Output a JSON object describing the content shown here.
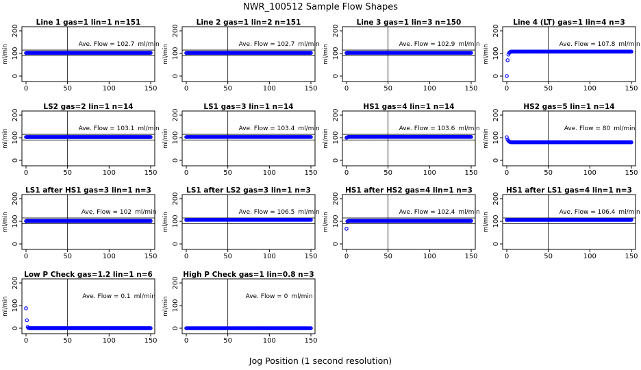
{
  "title": "NWR_100512  Sample Flow Shapes",
  "xlabel": "Jog Position (1 second resolution)",
  "annotation_prefix": "Ave. Flow = ",
  "annotation_unit": "ml/min",
  "colors": {
    "points": "#0000ff",
    "axes": "#000000"
  },
  "chart_data": [
    {
      "type": "scatter",
      "title": "Line 1 gas=1 lin=1 n=151",
      "ylabel": "ml/min",
      "xlim": [
        0,
        150
      ],
      "ylim": [
        0,
        200
      ],
      "xticks": [
        0,
        50,
        100,
        150
      ],
      "yticks": [
        0,
        100,
        200
      ],
      "ave_flow": "102.7",
      "vline_x": 50,
      "hlines": [
        90,
        115
      ],
      "shape": {
        "first": 102,
        "decay": [],
        "level": 102.7,
        "n": 151
      }
    },
    {
      "type": "scatter",
      "title": "Line 2 gas=1 lin=2 n=151",
      "ylabel": "ml/min",
      "xlim": [
        0,
        150
      ],
      "ylim": [
        0,
        200
      ],
      "xticks": [
        0,
        50,
        100,
        150
      ],
      "yticks": [
        0,
        100,
        200
      ],
      "ave_flow": "102.7",
      "vline_x": 50,
      "hlines": [
        90,
        115
      ],
      "shape": {
        "first": 102,
        "decay": [],
        "level": 102.7,
        "n": 151
      }
    },
    {
      "type": "scatter",
      "title": "Line 3 gas=1 lin=3 n=150",
      "ylabel": "ml/min",
      "xlim": [
        0,
        150
      ],
      "ylim": [
        0,
        200
      ],
      "xticks": [
        0,
        50,
        100,
        150
      ],
      "yticks": [
        0,
        100,
        200
      ],
      "ave_flow": "102.9",
      "vline_x": 50,
      "hlines": [
        90,
        115
      ],
      "shape": {
        "first": 102,
        "decay": [],
        "level": 102.9,
        "n": 150
      }
    },
    {
      "type": "scatter",
      "title": "Line 4 (LT) gas=1 lin=4 n=3",
      "ylabel": "ml/min",
      "xlim": [
        0,
        150
      ],
      "ylim": [
        0,
        200
      ],
      "xticks": [
        0,
        50,
        100,
        150
      ],
      "yticks": [
        0,
        100,
        200
      ],
      "ave_flow": "107.8",
      "vline_x": 50,
      "hlines": [],
      "shape": {
        "first": 0,
        "decay": [
          70,
          95,
          103,
          106
        ],
        "level": 108,
        "n": 151
      }
    },
    {
      "type": "scatter",
      "title": "LS2 gas=2 lin=1 n=14",
      "ylabel": "ml/min",
      "xlim": [
        0,
        150
      ],
      "ylim": [
        0,
        200
      ],
      "xticks": [
        0,
        50,
        100,
        150
      ],
      "yticks": [
        0,
        100,
        200
      ],
      "ave_flow": "103.1",
      "vline_x": 50,
      "hlines": [
        90,
        115
      ],
      "shape": {
        "first": 103,
        "decay": [],
        "level": 103.1,
        "n": 151
      }
    },
    {
      "type": "scatter",
      "title": "LS1 gas=3 lin=1 n=14",
      "ylabel": "ml/min",
      "xlim": [
        0,
        150
      ],
      "ylim": [
        0,
        200
      ],
      "xticks": [
        0,
        50,
        100,
        150
      ],
      "yticks": [
        0,
        100,
        200
      ],
      "ave_flow": "103.4",
      "vline_x": 50,
      "hlines": [
        90,
        115
      ],
      "shape": {
        "first": 103,
        "decay": [],
        "level": 103.4,
        "n": 151
      }
    },
    {
      "type": "scatter",
      "title": "HS1 gas=4 lin=1 n=14",
      "ylabel": "ml/min",
      "xlim": [
        0,
        150
      ],
      "ylim": [
        0,
        200
      ],
      "xticks": [
        0,
        50,
        100,
        150
      ],
      "yticks": [
        0,
        100,
        200
      ],
      "ave_flow": "103.6",
      "vline_x": 50,
      "hlines": [
        90,
        115
      ],
      "shape": {
        "first": 100,
        "decay": [
          102
        ],
        "level": 103.6,
        "n": 151
      }
    },
    {
      "type": "scatter",
      "title": "HS2 gas=5 lin=1 n=14",
      "ylabel": "ml/min",
      "xlim": [
        0,
        150
      ],
      "ylim": [
        0,
        200
      ],
      "xticks": [
        0,
        50,
        100,
        150
      ],
      "yticks": [
        0,
        100,
        200
      ],
      "ave_flow": "80",
      "vline_x": 50,
      "hlines": [],
      "shape": {
        "first": 102,
        "decay": [
          92,
          86,
          83,
          81
        ],
        "level": 80,
        "n": 151
      }
    },
    {
      "type": "scatter",
      "title": "LS1 after HS1 gas=3 lin=1 n=3",
      "ylabel": "ml/min",
      "xlim": [
        0,
        150
      ],
      "ylim": [
        0,
        200
      ],
      "xticks": [
        0,
        50,
        100,
        150
      ],
      "yticks": [
        0,
        100,
        200
      ],
      "ave_flow": "102",
      "vline_x": 50,
      "hlines": [
        90,
        115
      ],
      "shape": {
        "first": 101,
        "decay": [],
        "level": 102,
        "n": 151
      }
    },
    {
      "type": "scatter",
      "title": "LS1 after LS2 gas=3 lin=1 n=3",
      "ylabel": "ml/min",
      "xlim": [
        0,
        150
      ],
      "ylim": [
        0,
        200
      ],
      "xticks": [
        0,
        50,
        100,
        150
      ],
      "yticks": [
        0,
        100,
        200
      ],
      "ave_flow": "106.5",
      "vline_x": 50,
      "hlines": [
        90,
        115
      ],
      "shape": {
        "first": 106,
        "decay": [],
        "level": 106.5,
        "n": 151
      }
    },
    {
      "type": "scatter",
      "title": "HS1 after HS2 gas=4 lin=1 n=3",
      "ylabel": "ml/min",
      "xlim": [
        0,
        150
      ],
      "ylim": [
        0,
        200
      ],
      "xticks": [
        0,
        50,
        100,
        150
      ],
      "yticks": [
        0,
        100,
        200
      ],
      "ave_flow": "102.4",
      "vline_x": 50,
      "hlines": [
        90,
        115
      ],
      "shape": {
        "first": 67,
        "decay": [
          100,
          101
        ],
        "level": 102.4,
        "n": 151
      }
    },
    {
      "type": "scatter",
      "title": "HS1 after LS1 gas=4 lin=1 n=3",
      "ylabel": "ml/min",
      "xlim": [
        0,
        150
      ],
      "ylim": [
        0,
        200
      ],
      "xticks": [
        0,
        50,
        100,
        150
      ],
      "yticks": [
        0,
        100,
        200
      ],
      "ave_flow": "106.4",
      "vline_x": 50,
      "hlines": [
        90,
        115
      ],
      "shape": {
        "first": 106,
        "decay": [],
        "level": 106.4,
        "n": 151
      }
    },
    {
      "type": "scatter",
      "title": "Low P Check gas=1.2 lin=1 n=6",
      "ylabel": "ml/min",
      "xlim": [
        0,
        150
      ],
      "ylim": [
        0,
        200
      ],
      "xticks": [
        0,
        50,
        100,
        150
      ],
      "yticks": [
        0,
        100,
        200
      ],
      "ave_flow": "0.1",
      "vline_x": 50,
      "hlines": [],
      "shape": {
        "first": 88,
        "decay": [
          35,
          5,
          1
        ],
        "level": 0.1,
        "n": 151
      }
    },
    {
      "type": "scatter",
      "title": "High P Check gas=1 lin=0.8 n=3",
      "ylabel": "ml/min",
      "xlim": [
        0,
        150
      ],
      "ylim": [
        0,
        200
      ],
      "xticks": [
        0,
        50,
        100,
        150
      ],
      "yticks": [
        0,
        100,
        200
      ],
      "ave_flow": "0",
      "vline_x": 50,
      "hlines": [],
      "shape": {
        "first": 0,
        "decay": [],
        "level": 0,
        "n": 151
      }
    }
  ]
}
